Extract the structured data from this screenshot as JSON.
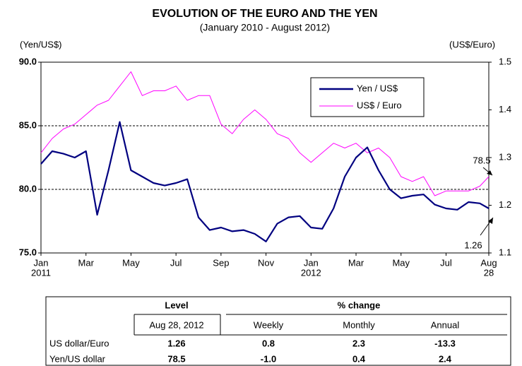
{
  "chart_data": {
    "type": "line",
    "title": "EVOLUTION OF THE EURO AND THE YEN",
    "subtitle": "(January 2010 - August 2012)",
    "y_label": "(Yen/US$)",
    "y2_label": "(US$/Euro)",
    "x": [
      0,
      0.5,
      1,
      1.5,
      2,
      2.5,
      3,
      3.5,
      4,
      4.5,
      5,
      5.5,
      6,
      6.5,
      7,
      7.5,
      8,
      8.5,
      9,
      9.5,
      10,
      10.5,
      11,
      11.5,
      12,
      12.5,
      13,
      13.5,
      14,
      14.5,
      15,
      15.5,
      16,
      16.5,
      17,
      17.5,
      18,
      18.5,
      19,
      19.5,
      19.9
    ],
    "xlim": [
      0,
      19.9
    ],
    "xticks": [
      {
        "value": 0,
        "label": "Jan",
        "sublabel": "2011"
      },
      {
        "value": 2,
        "label": "Mar"
      },
      {
        "value": 4,
        "label": "May"
      },
      {
        "value": 6,
        "label": "Jul"
      },
      {
        "value": 8,
        "label": "Sep"
      },
      {
        "value": 10,
        "label": "Nov"
      },
      {
        "value": 12,
        "label": "Jan",
        "sublabel": "2012"
      },
      {
        "value": 14,
        "label": "Mar"
      },
      {
        "value": 16,
        "label": "May"
      },
      {
        "value": 18,
        "label": "Jul"
      },
      {
        "value": 19.9,
        "label": "Aug",
        "sublabel": "28"
      }
    ],
    "ylim": [
      75,
      90
    ],
    "yticks": [
      {
        "value": 75,
        "label": "75.0"
      },
      {
        "value": 80,
        "label": "80.0"
      },
      {
        "value": 85,
        "label": "85.0"
      },
      {
        "value": 90,
        "label": "90.0"
      }
    ],
    "y2lim": [
      1.1,
      1.5
    ],
    "y2ticks": [
      1.1,
      1.2,
      1.3,
      1.4,
      1.5
    ],
    "grid": true,
    "legend": "upper right",
    "series": [
      {
        "name": "Yen / US$",
        "color": "#000080",
        "values": [
          82.0,
          83.0,
          82.8,
          82.5,
          83.0,
          78.0,
          81.5,
          85.3,
          81.5,
          81.0,
          80.5,
          80.3,
          80.5,
          80.8,
          77.8,
          76.8,
          77.0,
          76.7,
          76.8,
          76.5,
          75.9,
          77.3,
          77.8,
          77.9,
          77.0,
          76.9,
          78.5,
          81.0,
          82.5,
          83.3,
          81.5,
          80.0,
          79.3,
          79.5,
          79.6,
          78.8,
          78.5,
          78.4,
          79.0,
          78.9,
          78.5
        ]
      },
      {
        "name": "US$ / Euro",
        "color": "#ff00ff",
        "axis": "y2",
        "values": [
          1.31,
          1.34,
          1.36,
          1.37,
          1.39,
          1.41,
          1.42,
          1.45,
          1.48,
          1.43,
          1.44,
          1.44,
          1.45,
          1.42,
          1.43,
          1.43,
          1.37,
          1.35,
          1.38,
          1.4,
          1.38,
          1.35,
          1.34,
          1.31,
          1.29,
          1.31,
          1.33,
          1.32,
          1.33,
          1.31,
          1.32,
          1.3,
          1.26,
          1.25,
          1.26,
          1.22,
          1.23,
          1.23,
          1.23,
          1.24,
          1.26
        ]
      }
    ],
    "annotations": [
      "78.5",
      "1.26"
    ]
  },
  "table": {
    "groups": [
      "Level",
      "% change"
    ],
    "columns": [
      "Aug 28, 2012",
      "Weekly",
      "Monthly",
      "Annual"
    ],
    "rows": [
      [
        "US dollar/Euro",
        "1.26",
        "0.8",
        "2.3",
        "-13.3"
      ],
      [
        "Yen/US dollar",
        "78.5",
        "-1.0",
        "0.4",
        "2.4"
      ]
    ]
  }
}
